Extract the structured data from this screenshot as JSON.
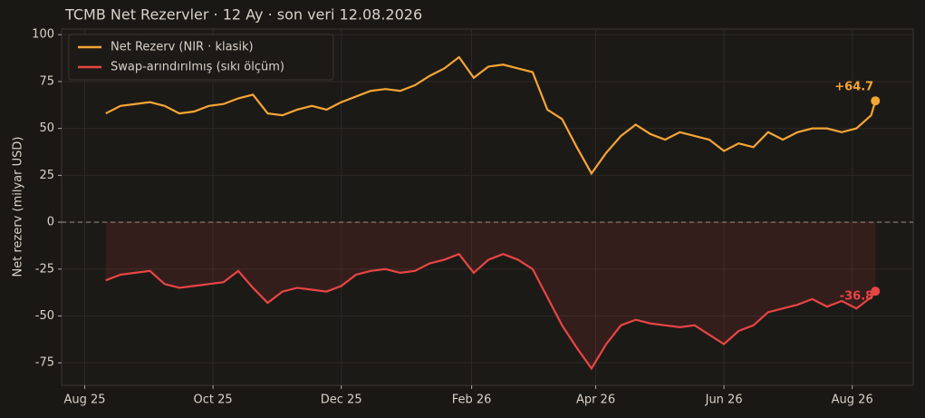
{
  "chart_data": {
    "type": "line",
    "title": "TCMB Net Rezervler · 12 Ay · son veri 12.08.2026",
    "y_label": "Net rezerv (milyar USD)",
    "x": [
      "2025-08-11",
      "2025-08-18",
      "2025-08-25",
      "2025-09-01",
      "2025-09-08",
      "2025-09-15",
      "2025-09-22",
      "2025-09-29",
      "2025-10-06",
      "2025-10-13",
      "2025-10-20",
      "2025-10-27",
      "2025-11-03",
      "2025-11-10",
      "2025-11-17",
      "2025-11-24",
      "2025-12-01",
      "2025-12-08",
      "2025-12-15",
      "2025-12-22",
      "2025-12-29",
      "2026-01-05",
      "2026-01-12",
      "2026-01-19",
      "2026-01-26",
      "2026-02-02",
      "2026-02-09",
      "2026-02-16",
      "2026-02-23",
      "2026-03-02",
      "2026-03-09",
      "2026-03-16",
      "2026-03-23",
      "2026-03-30",
      "2026-04-06",
      "2026-04-13",
      "2026-04-20",
      "2026-04-27",
      "2026-05-04",
      "2026-05-11",
      "2026-05-18",
      "2026-05-25",
      "2026-06-01",
      "2026-06-08",
      "2026-06-15",
      "2026-06-22",
      "2026-06-29",
      "2026-07-06",
      "2026-07-13",
      "2026-07-20",
      "2026-07-27",
      "2026-08-03",
      "2026-08-10",
      "2026-08-12"
    ],
    "series": [
      {
        "name": "Net Rezerv (NIR · klasik)",
        "color": "#f5a535",
        "end_label": "+64.7",
        "values": [
          58,
          62,
          63,
          64,
          62,
          58,
          59,
          62,
          63,
          66,
          68,
          58,
          57,
          60,
          62,
          60,
          64,
          67,
          70,
          71,
          70,
          73,
          78,
          82,
          88,
          77,
          83,
          84,
          82,
          80,
          60,
          55,
          40,
          26,
          37,
          46,
          52,
          47,
          44,
          48,
          46,
          44,
          38,
          42,
          40,
          48,
          44,
          48,
          50,
          50,
          48,
          50,
          57,
          64.7
        ]
      },
      {
        "name": "Swap-arındırılmış (sıkı ölçüm)",
        "color": "#e84545",
        "end_label": "-36.8",
        "fill": true,
        "values": [
          -31,
          -28,
          -27,
          -26,
          -33,
          -35,
          -34,
          -33,
          -32,
          -26,
          -35,
          -43,
          -37,
          -35,
          -36,
          -37,
          -34,
          -28,
          -26,
          -25,
          -27,
          -26,
          -22,
          -20,
          -17,
          -27,
          -20,
          -17,
          -20,
          -25,
          -40,
          -55,
          -67,
          -78,
          -65,
          -55,
          -52,
          -54,
          -55,
          -56,
          -55,
          -60,
          -65,
          -58,
          -55,
          -48,
          -46,
          -44,
          -41,
          -45,
          -42,
          -46,
          -40,
          -36.8
        ]
      }
    ],
    "xlim": [
      "2025-07-21",
      "2026-08-30"
    ],
    "xticks": [
      {
        "value": "2025-08-01",
        "label": "Aug 25"
      },
      {
        "value": "2025-10-01",
        "label": "Oct 25"
      },
      {
        "value": "2025-12-01",
        "label": "Dec 25"
      },
      {
        "value": "2026-02-01",
        "label": "Feb 26"
      },
      {
        "value": "2026-04-01",
        "label": "Apr 26"
      },
      {
        "value": "2026-06-01",
        "label": "Jun 26"
      },
      {
        "value": "2026-08-01",
        "label": "Aug 26"
      }
    ],
    "ylim": [
      -87,
      103
    ],
    "yticks": [
      -75,
      -50,
      -25,
      0,
      25,
      50,
      75,
      100
    ],
    "grid": true,
    "zero_line": true,
    "legend": "upper left"
  }
}
